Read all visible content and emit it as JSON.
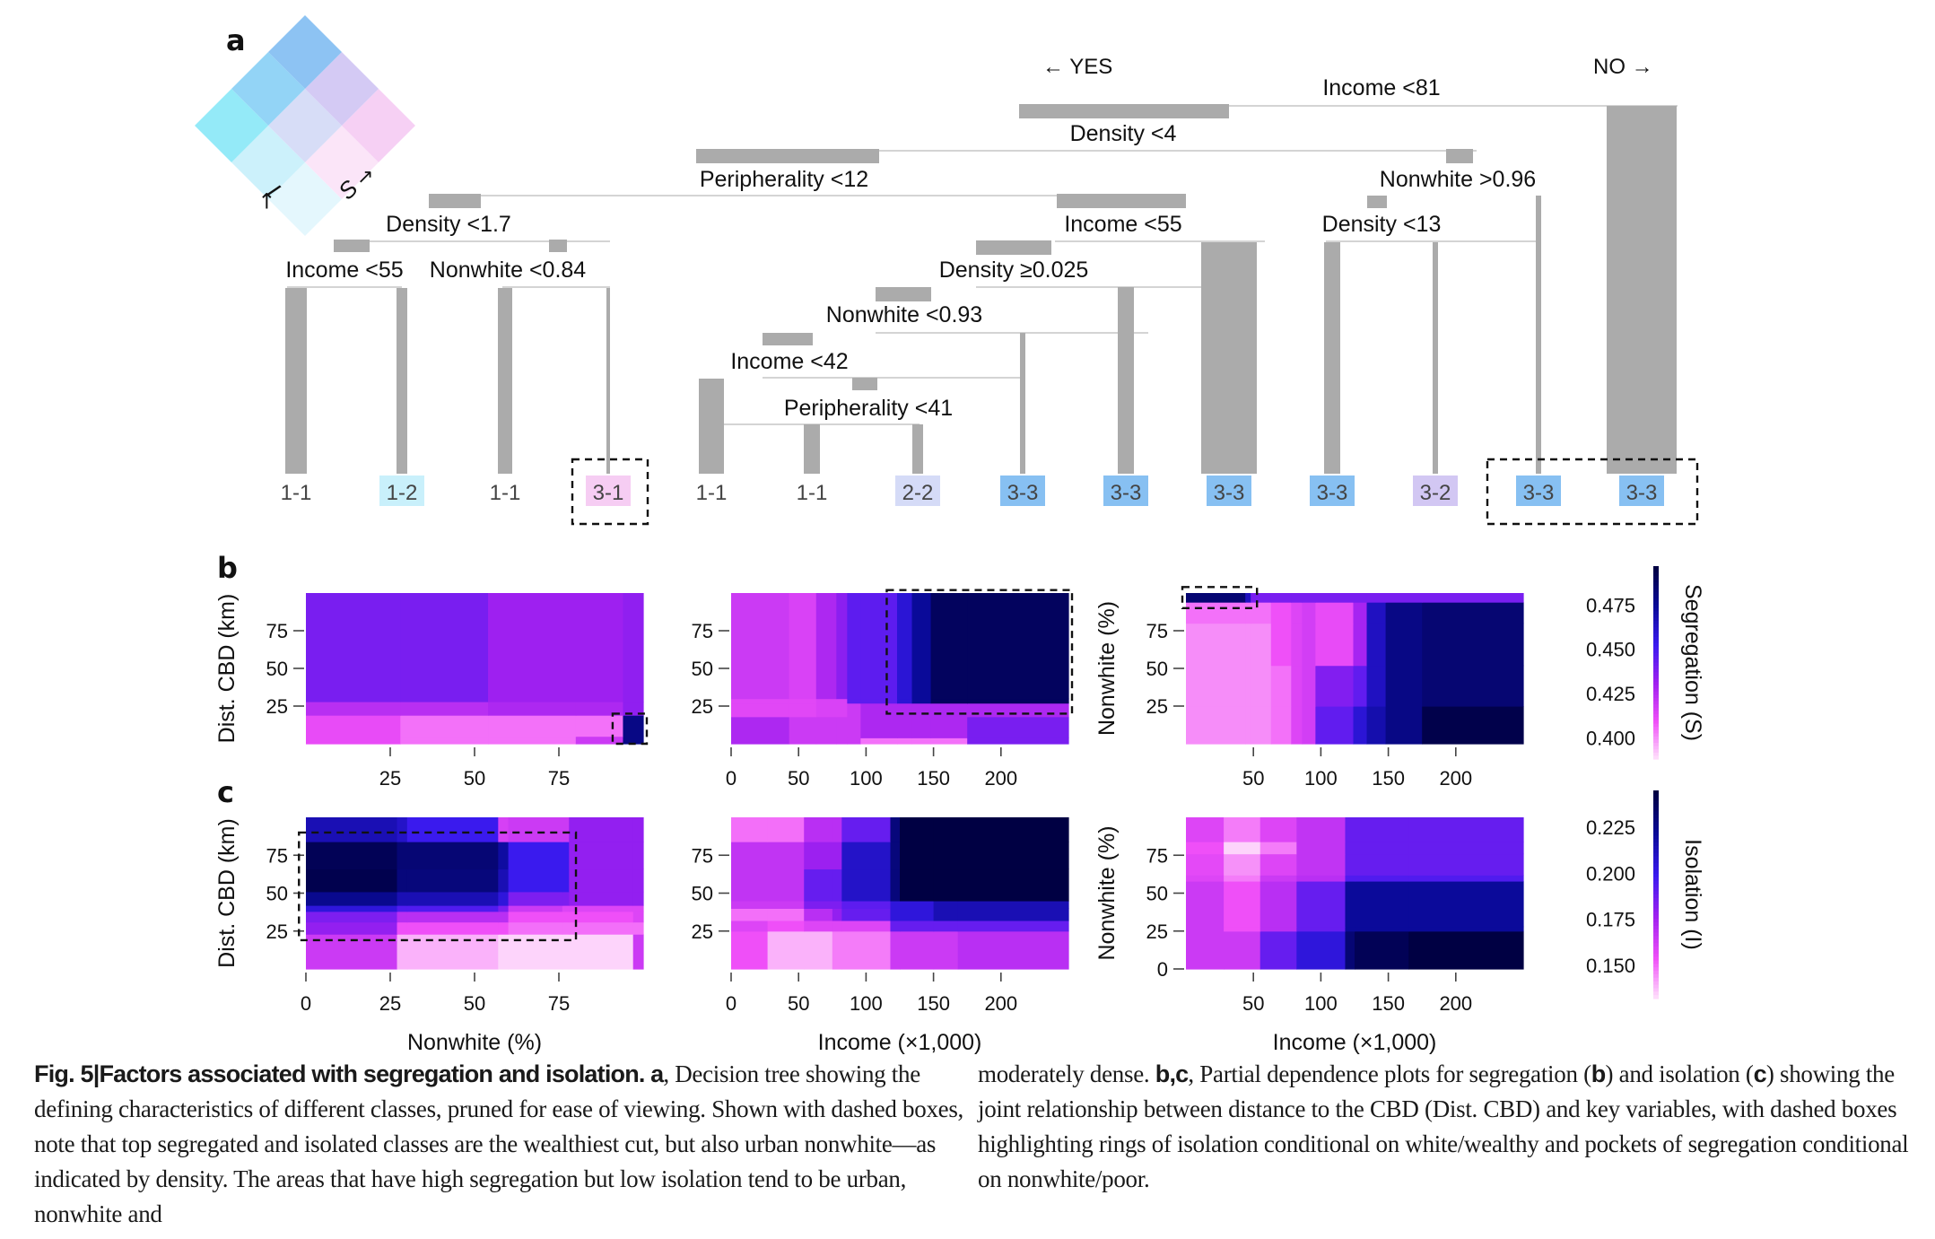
{
  "figure": {
    "panel_labels": {
      "a": "a",
      "b": "b",
      "c": "c"
    },
    "caption": {
      "figure_number": "Fig. 5",
      "separator": "|",
      "title": "Factors associated with segregation and isolation.",
      "part_a_label": "a",
      "part_a_text": ", Decision tree showing the defining characteristics of different classes, pruned for ease of viewing. Shown with dashed boxes, note that top segregated and isolated classes are the wealthiest cut, but also urban nonwhite—as indicated by density. The areas that have high segregation but low isolation tend to be urban, nonwhite and",
      "part_a_cont": "moderately dense. ",
      "part_bc_label": "b,c",
      "part_bc_text_1": ", Partial dependence plots for segregation (",
      "b_ref": "b",
      "part_bc_text_2": ") and isolation (",
      "c_ref": "c",
      "part_bc_text_3": ") showing the joint relationship between distance to the CBD (Dist. CBD) and key variables, with dashed boxes highlighting rings of isolation conditional on white/wealthy and pockets of segregation conditional on nonwhite/poor."
    }
  },
  "bivariate_legend": {
    "axis_I_label": "I",
    "axis_S_label": "S",
    "colors_by_class": {
      "1-1": "#e3f7fd",
      "1-2": "#c9f0fb",
      "1-3": "#8ee9f8",
      "2-1": "#fbe4f8",
      "2-2": "#d5dbf7",
      "2-3": "#8dd2f6",
      "3-1": "#f6cdf3",
      "3-2": "#d2c7f3",
      "3-3": "#87c0f2"
    }
  },
  "chart_data": [
    {
      "type": "tree",
      "title": "Decision tree",
      "direction_labels": {
        "yes": "← YES",
        "no": "NO →"
      },
      "nodes": [
        {
          "id": "n0",
          "label": "Income <81"
        },
        {
          "id": "n1",
          "label": "Density <4",
          "parent": "n0",
          "branch": "yes"
        },
        {
          "id": "n2",
          "label": "Peripherality <12",
          "parent": "n1",
          "branch": "yes"
        },
        {
          "id": "n3",
          "label": "Density <1.7",
          "parent": "n2",
          "branch": "yes"
        },
        {
          "id": "n4",
          "label": "Income <55",
          "parent": "n3",
          "branch": "yes"
        },
        {
          "id": "n5",
          "label": "Nonwhite <0.84",
          "parent": "n3",
          "branch": "no"
        },
        {
          "id": "n6",
          "label": "Income <55",
          "parent": "n2",
          "branch": "no"
        },
        {
          "id": "n7",
          "label": "Density ≥0.025",
          "parent": "n6",
          "branch": "yes"
        },
        {
          "id": "n8",
          "label": "Nonwhite <0.93",
          "parent": "n7",
          "branch": "yes"
        },
        {
          "id": "n9",
          "label": "Income <42",
          "parent": "n8",
          "branch": "yes"
        },
        {
          "id": "n10",
          "label": "Peripherality <41",
          "parent": "n9",
          "branch": "no"
        },
        {
          "id": "n11",
          "label": "Nonwhite >0.96",
          "parent": "n1",
          "branch": "no"
        },
        {
          "id": "n12",
          "label": "Density <13",
          "parent": "n11",
          "branch": "yes"
        }
      ],
      "leaves": [
        {
          "class": "1-1",
          "highlighted": false,
          "dashed_group": null
        },
        {
          "class": "1-2",
          "highlighted": true,
          "dashed_group": null
        },
        {
          "class": "1-1",
          "highlighted": false,
          "dashed_group": null
        },
        {
          "class": "3-1",
          "highlighted": true,
          "dashed_group": "box1"
        },
        {
          "class": "1-1",
          "highlighted": false,
          "dashed_group": null
        },
        {
          "class": "1-1",
          "highlighted": false,
          "dashed_group": null
        },
        {
          "class": "2-2",
          "highlighted": true,
          "dashed_group": null
        },
        {
          "class": "3-3",
          "highlighted": true,
          "dashed_group": null
        },
        {
          "class": "3-3",
          "highlighted": true,
          "dashed_group": null
        },
        {
          "class": "3-3",
          "highlighted": true,
          "dashed_group": null
        },
        {
          "class": "3-3",
          "highlighted": true,
          "dashed_group": null
        },
        {
          "class": "3-2",
          "highlighted": true,
          "dashed_group": null
        },
        {
          "class": "3-3",
          "highlighted": true,
          "dashed_group": "box2"
        },
        {
          "class": "3-3",
          "highlighted": true,
          "dashed_group": "box2"
        }
      ]
    },
    {
      "type": "heatmap",
      "panel": "b",
      "id": "b1",
      "xlabel": "",
      "ylabel": "Dist. CBD (km)",
      "xticks": [
        25,
        50,
        75
      ],
      "yticks": [
        25,
        50,
        75
      ],
      "xlim": [
        0,
        100
      ],
      "ylim": [
        0,
        100
      ],
      "x_breaks": [
        0,
        28,
        54,
        80,
        94,
        100
      ],
      "y_breaks": [
        0,
        5,
        19,
        28,
        100
      ],
      "z": [
        [
          0.412,
          0.405,
          0.405,
          0.42,
          0.48
        ],
        [
          0.412,
          0.405,
          0.405,
          0.405,
          0.48
        ],
        [
          0.425,
          0.425,
          0.428,
          0.428,
          0.435
        ],
        [
          0.44,
          0.44,
          0.432,
          0.432,
          0.435
        ]
      ],
      "highlight_box": {
        "x": [
          92,
          100
        ],
        "y": [
          0,
          20
        ]
      }
    },
    {
      "type": "heatmap",
      "panel": "b",
      "id": "b2",
      "xlabel": "",
      "ylabel": "",
      "xticks": [
        0,
        50,
        100,
        150,
        200
      ],
      "yticks": [
        25,
        50,
        75
      ],
      "xlim": [
        0,
        250
      ],
      "ylim": [
        0,
        100
      ],
      "x_breaks": [
        0,
        43,
        63,
        78,
        86,
        96,
        123,
        134,
        148,
        175,
        250
      ],
      "y_breaks": [
        0,
        4,
        18,
        27,
        30,
        100
      ],
      "z": [
        [
          0.428,
          0.42,
          0.42,
          0.42,
          0.42,
          0.405,
          0.405,
          0.405,
          0.405,
          0.44
        ],
        [
          0.428,
          0.42,
          0.42,
          0.42,
          0.42,
          0.428,
          0.428,
          0.428,
          0.428,
          0.44
        ],
        [
          0.414,
          0.414,
          0.416,
          0.416,
          0.42,
          0.428,
          0.428,
          0.428,
          0.428,
          0.428
        ],
        [
          0.414,
          0.414,
          0.416,
          0.416,
          0.446,
          0.446,
          0.46,
          0.475,
          0.49,
          0.49
        ],
        [
          0.42,
          0.416,
          0.428,
          0.436,
          0.446,
          0.446,
          0.46,
          0.475,
          0.49,
          0.49
        ]
      ],
      "highlight_box": {
        "x": [
          118,
          250
        ],
        "y": [
          20,
          102
        ]
      }
    },
    {
      "type": "heatmap",
      "panel": "b",
      "id": "b3",
      "xlabel": "",
      "ylabel": "Nonwhite (%)",
      "xticks": [
        50,
        100,
        150,
        200
      ],
      "yticks": [
        25,
        50,
        75
      ],
      "xlim": [
        0,
        250
      ],
      "ylim": [
        0,
        100
      ],
      "x_breaks": [
        0,
        44,
        48,
        63,
        78,
        86,
        96,
        124,
        134,
        148,
        175,
        250
      ],
      "y_breaks": [
        0,
        25,
        52,
        80,
        94,
        100
      ],
      "z": [
        [
          0.401,
          0.401,
          0.401,
          0.405,
          0.415,
          0.418,
          0.445,
          0.46,
          0.47,
          0.48,
          0.495
        ],
        [
          0.401,
          0.401,
          0.401,
          0.405,
          0.415,
          0.418,
          0.438,
          0.445,
          0.465,
          0.48,
          0.485
        ],
        [
          0.401,
          0.401,
          0.401,
          0.41,
          0.415,
          0.418,
          0.412,
          0.43,
          0.465,
          0.48,
          0.485
        ],
        [
          0.405,
          0.405,
          0.405,
          0.41,
          0.415,
          0.418,
          0.412,
          0.43,
          0.465,
          0.48,
          0.485
        ],
        [
          0.485,
          0.465,
          0.44,
          0.44,
          0.44,
          0.44,
          0.44,
          0.44,
          0.44,
          0.44,
          0.44
        ]
      ],
      "highlight_box": {
        "x": [
          0,
          50
        ],
        "y": [
          90,
          104
        ]
      }
    },
    {
      "type": "colorbar",
      "panel": "b",
      "label": "Segregation (S)",
      "ticks": [
        "0.400",
        "0.425",
        "0.450",
        "0.475"
      ],
      "tick_values": [
        0.4,
        0.425,
        0.45,
        0.475
      ],
      "range": [
        0.388,
        0.497
      ],
      "colors": [
        "#ffe8fb",
        "#f050f8",
        "#a020f0",
        "#3a1aef",
        "#0a0a98",
        "#000043"
      ]
    },
    {
      "type": "heatmap",
      "panel": "c",
      "id": "c1",
      "xlabel": "Nonwhite (%)",
      "ylabel": "Dist. CBD (km)",
      "xticks": [
        0,
        25,
        50,
        75
      ],
      "yticks": [
        25,
        50,
        75
      ],
      "xlim": [
        0,
        100
      ],
      "ylim": [
        0,
        100
      ],
      "x_breaks": [
        0,
        27,
        30,
        57,
        60,
        76,
        78,
        97,
        100
      ],
      "y_breaks": [
        0,
        23,
        31,
        38,
        42,
        51,
        66,
        84,
        100
      ],
      "z": [
        [
          0.165,
          0.14,
          0.14,
          0.135,
          0.135,
          0.135,
          0.135,
          0.165
        ],
        [
          0.18,
          0.155,
          0.155,
          0.155,
          0.15,
          0.15,
          0.15,
          0.15
        ],
        [
          0.185,
          0.17,
          0.17,
          0.17,
          0.155,
          0.155,
          0.155,
          0.16
        ],
        [
          0.205,
          0.195,
          0.195,
          0.185,
          0.165,
          0.16,
          0.16,
          0.16
        ],
        [
          0.225,
          0.215,
          0.215,
          0.205,
          0.185,
          0.185,
          0.18,
          0.18
        ],
        [
          0.242,
          0.23,
          0.23,
          0.215,
          0.2,
          0.2,
          0.18,
          0.18
        ],
        [
          0.24,
          0.232,
          0.232,
          0.22,
          0.2,
          0.2,
          0.18,
          0.18
        ],
        [
          0.215,
          0.21,
          0.2,
          0.162,
          0.165,
          0.165,
          0.18,
          0.18
        ]
      ],
      "highlight_box": {
        "x": [
          -1,
          79
        ],
        "y": [
          19,
          90
        ]
      }
    },
    {
      "type": "heatmap",
      "panel": "c",
      "id": "c2",
      "xlabel": "Income (×1,000)",
      "ylabel": "",
      "xticks": [
        0,
        50,
        100,
        150,
        200
      ],
      "yticks": [
        25,
        50,
        75
      ],
      "xlim": [
        0,
        250
      ],
      "ylim": [
        0,
        100
      ],
      "x_breaks": [
        0,
        27,
        54,
        75,
        82,
        118,
        125,
        150,
        168,
        250
      ],
      "y_breaks": [
        0,
        25,
        32,
        40,
        45,
        66,
        84,
        100
      ],
      "z": [
        [
          0.155,
          0.14,
          0.14,
          0.148,
          0.148,
          0.165,
          0.165,
          0.165,
          0.17
        ],
        [
          0.16,
          0.155,
          0.16,
          0.16,
          0.16,
          0.19,
          0.19,
          0.19,
          0.19
        ],
        [
          0.15,
          0.15,
          0.17,
          0.18,
          0.19,
          0.205,
          0.205,
          0.215,
          0.215
        ],
        [
          0.165,
          0.165,
          0.185,
          0.185,
          0.192,
          0.205,
          0.205,
          0.215,
          0.215
        ],
        [
          0.168,
          0.168,
          0.19,
          0.19,
          0.21,
          0.23,
          0.245,
          0.245,
          0.245
        ],
        [
          0.168,
          0.168,
          0.178,
          0.178,
          0.21,
          0.23,
          0.245,
          0.245,
          0.245
        ],
        [
          0.15,
          0.15,
          0.17,
          0.17,
          0.19,
          0.23,
          0.245,
          0.245,
          0.245
        ]
      ],
      "highlight_box": null
    },
    {
      "type": "heatmap",
      "panel": "c",
      "id": "c3",
      "xlabel": "Income (×1,000)",
      "ylabel": "Nonwhite (%)",
      "xticks": [
        50,
        100,
        150,
        200
      ],
      "yticks": [
        0,
        25,
        50,
        75
      ],
      "xlim": [
        0,
        250
      ],
      "ylim": [
        0,
        100
      ],
      "x_breaks": [
        0,
        28,
        55,
        82,
        118,
        125,
        165,
        250
      ],
      "y_breaks": [
        0,
        25,
        28,
        58,
        62,
        76,
        84,
        100
      ],
      "z": [
        [
          0.165,
          0.165,
          0.19,
          0.205,
          0.232,
          0.24,
          0.245
        ],
        [
          0.165,
          0.155,
          0.17,
          0.19,
          0.222,
          0.222,
          0.222
        ],
        [
          0.165,
          0.155,
          0.17,
          0.19,
          0.222,
          0.222,
          0.222
        ],
        [
          0.16,
          0.148,
          0.165,
          0.17,
          0.195,
          0.195,
          0.195
        ],
        [
          0.158,
          0.145,
          0.16,
          0.168,
          0.19,
          0.19,
          0.19
        ],
        [
          0.155,
          0.135,
          0.148,
          0.168,
          0.19,
          0.19,
          0.19
        ],
        [
          0.16,
          0.148,
          0.16,
          0.168,
          0.19,
          0.19,
          0.19
        ]
      ],
      "highlight_box": null
    },
    {
      "type": "colorbar",
      "panel": "c",
      "label": "Isolation (I)",
      "ticks": [
        "0.150",
        "0.175",
        "0.200",
        "0.225"
      ],
      "tick_values": [
        0.15,
        0.175,
        0.2,
        0.225
      ],
      "range": [
        0.132,
        0.245
      ],
      "colors": [
        "#ffe8fb",
        "#f050f8",
        "#a020f0",
        "#3a1aef",
        "#0a0a98",
        "#000043"
      ]
    }
  ]
}
